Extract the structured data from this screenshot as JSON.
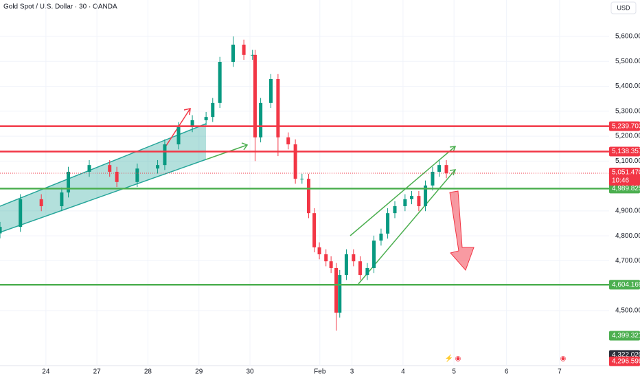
{
  "chart_data": {
    "type": "candlestick",
    "title": "Gold Spot / U.S. Dollar · 30 · OANDA",
    "currency": "USD",
    "x": [
      -0.9,
      -0.5,
      -0.09,
      0.31,
      0.44,
      0.85,
      1.25,
      1.39,
      1.79,
      2.19,
      2.33,
      2.6,
      2.87,
      3.14,
      3.27,
      3.41,
      3.67,
      3.88,
      4.05,
      4.1,
      4.21,
      4.41,
      4.55,
      4.75,
      4.89,
      5.02,
      5.15,
      5.26,
      5.36,
      5.49,
      5.59,
      5.69,
      5.76,
      5.89,
      6.03,
      6.16,
      6.3,
      6.43,
      6.57,
      6.7,
      6.84,
      7.04,
      7.17,
      7.31,
      7.44,
      7.58,
      7.71,
      7.85
    ],
    "open": [
      4810,
      4836,
      4947,
      4919,
      4974,
      5057,
      5084,
      5057,
      5016,
      5070,
      5084,
      5167,
      5236,
      5264,
      5277,
      5333,
      5498,
      5567,
      5526,
      5526,
      5195,
      5333,
      5429,
      5195,
      5167,
      5029,
      5029,
      4891,
      4754,
      4726,
      4698,
      4671,
      4492,
      4643,
      4726,
      4698,
      4643,
      4671,
      4781,
      4809,
      4891,
      4919,
      4947,
      4960,
      4919,
      5002,
      5057,
      5084
    ],
    "high": [
      4856,
      4967,
      4967,
      4994,
      5077,
      5104,
      5104,
      5077,
      5090,
      5104,
      5187,
      5256,
      5284,
      5297,
      5353,
      5518,
      5600,
      5587,
      5546,
      5546,
      5353,
      5449,
      5449,
      5215,
      5187,
      5049,
      5049,
      4911,
      4774,
      4746,
      4718,
      4691,
      4663,
      4746,
      4746,
      4718,
      4691,
      4801,
      4829,
      4911,
      4939,
      4967,
      4980,
      4980,
      5022,
      5077,
      5104,
      5104
    ],
    "low": [
      4790,
      4816,
      4899,
      4899,
      4954,
      5037,
      5037,
      4996,
      4996,
      5050,
      5064,
      5147,
      5216,
      5244,
      5257,
      5313,
      5478,
      5506,
      5506,
      5100,
      5175,
      5313,
      5120,
      5147,
      5009,
      5009,
      4871,
      4734,
      4706,
      4678,
      4651,
      4420,
      4472,
      4623,
      4678,
      4623,
      4623,
      4651,
      4761,
      4789,
      4871,
      4899,
      4927,
      4899,
      4899,
      4982,
      5037,
      5031
    ],
    "close": [
      4836,
      4947,
      4919,
      4974,
      5057,
      5084,
      5057,
      5016,
      5070,
      5084,
      5167,
      5236,
      5264,
      5277,
      5333,
      5498,
      5567,
      5526,
      5526,
      5195,
      5333,
      5429,
      5195,
      5167,
      5029,
      5029,
      4891,
      4754,
      4726,
      4698,
      4671,
      4492,
      4643,
      4726,
      4698,
      4643,
      4671,
      4781,
      4809,
      4891,
      4919,
      4947,
      4960,
      4919,
      5002,
      5057,
      5084,
      5051
    ],
    "up_color": "#089981",
    "down_color": "#f23645",
    "xlim": [
      -0.9,
      11.04
    ],
    "xticks": [
      {
        "value": 0,
        "label": "24"
      },
      {
        "value": 1,
        "label": "27"
      },
      {
        "value": 2,
        "label": "28"
      },
      {
        "value": 3,
        "label": "29"
      },
      {
        "value": 4,
        "label": "30"
      },
      {
        "value": 5.37,
        "label": "Feb"
      },
      {
        "value": 6,
        "label": "3"
      },
      {
        "value": 7,
        "label": "4"
      },
      {
        "value": 8,
        "label": "5"
      },
      {
        "value": 9.03,
        "label": "6"
      },
      {
        "value": 10.07,
        "label": "7"
      }
    ],
    "ylim": [
      4279.4,
      5746.1
    ],
    "yticks": [
      {
        "value": 5600,
        "label": "5,600.000"
      },
      {
        "value": 5500,
        "label": "5,500.000"
      },
      {
        "value": 5400,
        "label": "5,400.000"
      },
      {
        "value": 5300,
        "label": "5,300.000"
      },
      {
        "value": 5200,
        "label": "5,200.000"
      },
      {
        "value": 5100,
        "label": "5,100.000"
      },
      {
        "value": 4900,
        "label": "4,900.000"
      },
      {
        "value": 4800,
        "label": "4,800.000"
      },
      {
        "value": 4700,
        "label": "4,700.000"
      },
      {
        "value": 4500,
        "label": "4,500.000"
      }
    ],
    "levels": [
      {
        "value": 5239.703,
        "label": "5,239.703",
        "color": "#f23645",
        "line": true
      },
      {
        "value": 5138.357,
        "label": "5,138.357",
        "color": "#f23645",
        "line": true
      },
      {
        "value": 4989.825,
        "label": "4,989.825",
        "color": "#4caf50",
        "line": true
      },
      {
        "value": 4604.169,
        "label": "4,604.169",
        "color": "#4caf50",
        "line": true
      },
      {
        "value": 4399.321,
        "label": "4,399.321",
        "color": "#4caf50",
        "line": false
      },
      {
        "value": 4322.02,
        "label": "4,322.020",
        "color": "#2a2e39",
        "line": false
      },
      {
        "value": 4296.599,
        "label": "4,296.599",
        "color": "#f23645",
        "line": false
      }
    ],
    "last": {
      "value": 5051.47,
      "label": "5,051.470",
      "countdown": "10:46",
      "color": "#f23645"
    }
  }
}
